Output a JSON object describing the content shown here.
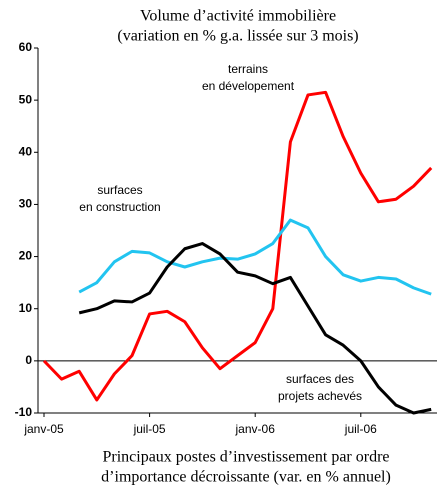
{
  "chart_data": {
    "type": "line",
    "title": [
      "Volume d’activité immobilière",
      "(variation en % g.a. lissée sur 3 mois)"
    ],
    "footer": [
      "Principaux postes d’investissement par ordre",
      "d’importance décroissante (var. en %  annuel)"
    ],
    "categories": [
      "janv-05",
      null,
      null,
      null,
      null,
      null,
      "juil-05",
      null,
      null,
      null,
      null,
      null,
      "janv-06",
      null,
      null,
      null,
      null,
      null,
      "juil-06",
      null,
      null,
      null,
      null
    ],
    "ylim": [
      -10,
      60
    ],
    "yticks": [
      -10,
      0,
      10,
      20,
      30,
      40,
      50,
      60
    ],
    "series": [
      {
        "name": [
          "terrains",
          "en dévelopement"
        ],
        "color": "#ff0000",
        "values": [
          0,
          -3.5,
          -2,
          -7.5,
          -2.5,
          1,
          9,
          9.5,
          7.5,
          2.5,
          -1.5,
          1,
          3.5,
          10,
          42,
          51,
          51.5,
          43,
          36,
          30.5,
          31,
          33.5,
          37
        ]
      },
      {
        "name": [
          "surfaces",
          "en construction"
        ],
        "color": "#22c4f0",
        "values": [
          null,
          null,
          13.2,
          15,
          19,
          21,
          20.7,
          19,
          18,
          19,
          19.7,
          19.5,
          20.5,
          22.5,
          27,
          25.5,
          20,
          16.5,
          15.3,
          16,
          15.7,
          14,
          12.8
        ]
      },
      {
        "name": [
          "surfaces des",
          "projets achevés"
        ],
        "color": "#000000",
        "values": [
          null,
          null,
          9.2,
          10,
          11.5,
          11.3,
          13,
          18,
          21.5,
          22.5,
          20.5,
          17,
          16.3,
          14.8,
          16,
          10.5,
          5,
          3,
          0,
          -5,
          -8.5,
          -10,
          -9.3
        ]
      }
    ]
  }
}
